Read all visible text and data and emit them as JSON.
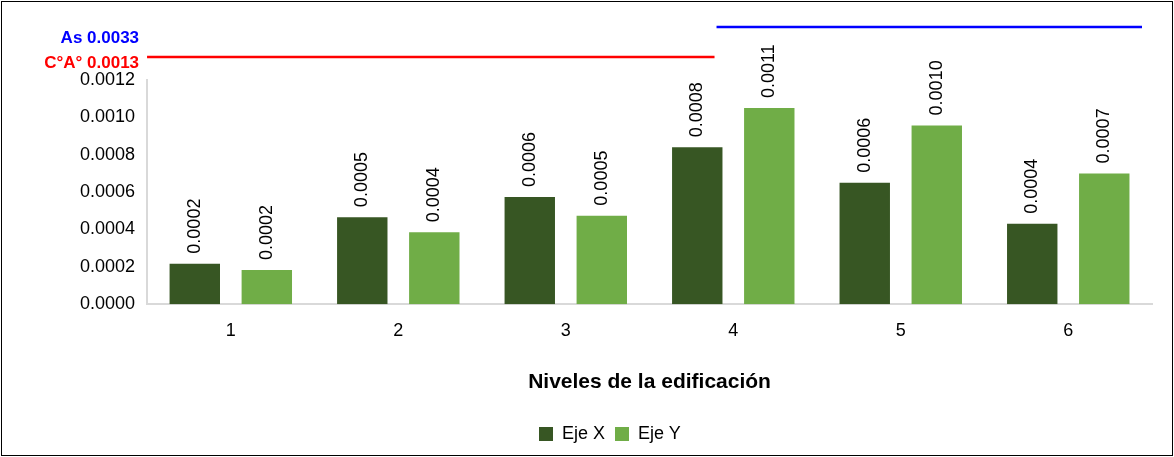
{
  "chart_data": {
    "type": "bar",
    "xlabel": "Niveles de la edificación",
    "categories": [
      "1",
      "2",
      "3",
      "4",
      "5",
      "6"
    ],
    "series": [
      {
        "name": "Eje X",
        "color": "#375623",
        "values": [
          0.000217,
          0.000466,
          0.000574,
          0.00084,
          0.00065,
          0.00043
        ],
        "value_labels": [
          "0.0002",
          "0.0005",
          "0.0006",
          "0.0008",
          "0.0006",
          "0.0004"
        ]
      },
      {
        "name": "Eje Y",
        "color": "#70ad47",
        "values": [
          0.000183,
          0.000385,
          0.000474,
          0.00105,
          0.000957,
          0.0007
        ],
        "value_labels": [
          "0.0002",
          "0.0004",
          "0.0005",
          "0.0011",
          "0.0010",
          "0.0007"
        ]
      }
    ],
    "ylim": [
      0,
      0.0012
    ],
    "yticks": [
      {
        "value": 0,
        "label": "0.0000"
      },
      {
        "value": 0.0002,
        "label": "0.0002"
      },
      {
        "value": 0.0004,
        "label": "0.0004"
      },
      {
        "value": 0.0006,
        "label": "0.0006"
      },
      {
        "value": 0.0008,
        "label": "0.0008"
      },
      {
        "value": 0.001,
        "label": "0.0010"
      },
      {
        "value": 0.0012,
        "label": "0.0012"
      }
    ],
    "annotations": [
      "As 0.0033",
      "C°A° 0.0013"
    ],
    "grid": false,
    "legend": "bottom"
  }
}
